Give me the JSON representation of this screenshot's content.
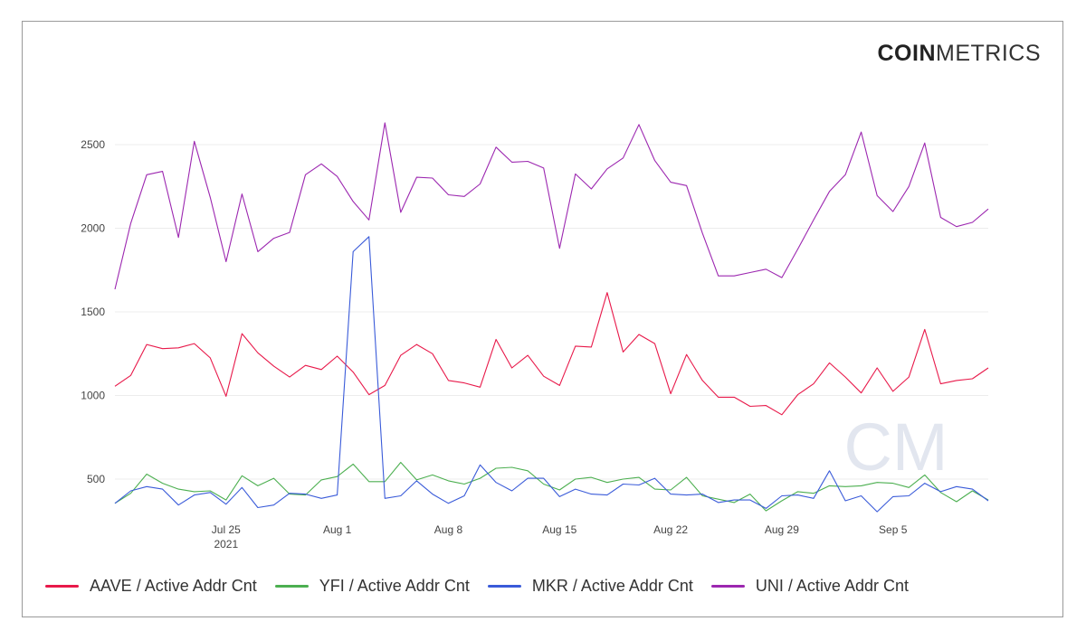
{
  "brand": {
    "logo_bold": "COIN",
    "logo_light": "METRICS",
    "watermark": "CM"
  },
  "chart_data": {
    "type": "line",
    "ylim": [
      0,
      2700
    ],
    "yticks": [
      500,
      1000,
      1500,
      2000,
      2500
    ],
    "x_tick_labels": [
      {
        "index": 7,
        "label": "Jul 25",
        "sublabel": "2021"
      },
      {
        "index": 14,
        "label": "Aug 1",
        "sublabel": ""
      },
      {
        "index": 21,
        "label": "Aug 8",
        "sublabel": ""
      },
      {
        "index": 28,
        "label": "Aug 15",
        "sublabel": ""
      },
      {
        "index": 35,
        "label": "Aug 22",
        "sublabel": ""
      },
      {
        "index": 42,
        "label": "Aug 29",
        "sublabel": ""
      },
      {
        "index": 49,
        "label": "Sep 5",
        "sublabel": ""
      }
    ],
    "num_points": 56,
    "series": [
      {
        "name": "AAVE / Active Addr Cnt",
        "color": "#e8194a",
        "values": [
          1055,
          1120,
          1305,
          1280,
          1285,
          1310,
          1225,
          995,
          1370,
          1255,
          1175,
          1110,
          1180,
          1155,
          1235,
          1140,
          1005,
          1060,
          1240,
          1305,
          1250,
          1090,
          1075,
          1050,
          1335,
          1165,
          1240,
          1115,
          1060,
          1295,
          1290,
          1615,
          1260,
          1365,
          1310,
          1010,
          1245,
          1090,
          990,
          990,
          935,
          940,
          885,
          1005,
          1070,
          1195,
          1110,
          1015,
          1165,
          1025,
          1110,
          1395,
          1070,
          1090,
          1100,
          1165
        ]
      },
      {
        "name": "YFI / Active Addr Cnt",
        "color": "#4caf50",
        "values": [
          355,
          415,
          530,
          475,
          440,
          425,
          430,
          375,
          520,
          460,
          505,
          410,
          405,
          495,
          515,
          590,
          485,
          485,
          600,
          495,
          525,
          490,
          470,
          505,
          565,
          570,
          550,
          470,
          435,
          500,
          510,
          480,
          500,
          510,
          440,
          435,
          510,
          400,
          380,
          360,
          410,
          310,
          370,
          425,
          415,
          460,
          455,
          460,
          480,
          475,
          450,
          525,
          420,
          365,
          430,
          375
        ]
      },
      {
        "name": "MKR / Active Addr Cnt",
        "color": "#3a5bd9",
        "values": [
          355,
          430,
          455,
          440,
          345,
          405,
          420,
          350,
          450,
          330,
          345,
          415,
          410,
          385,
          405,
          1860,
          1950,
          385,
          400,
          490,
          410,
          355,
          400,
          585,
          480,
          430,
          505,
          505,
          395,
          440,
          410,
          405,
          470,
          465,
          505,
          410,
          405,
          410,
          360,
          375,
          375,
          325,
          400,
          405,
          385,
          550,
          370,
          400,
          305,
          395,
          400,
          475,
          425,
          455,
          440,
          370
        ]
      },
      {
        "name": "UNI / Active Addr Cnt",
        "color": "#9c27b0",
        "values": [
          1635,
          2030,
          2320,
          2340,
          1945,
          2520,
          2185,
          1800,
          2205,
          1860,
          1940,
          1975,
          2320,
          2385,
          2310,
          2160,
          2050,
          2630,
          2095,
          2305,
          2300,
          2200,
          2190,
          2265,
          2485,
          2395,
          2400,
          2360,
          1880,
          2325,
          2235,
          2355,
          2420,
          2620,
          2405,
          2275,
          2255,
          1970,
          1715,
          1715,
          1735,
          1755,
          1705,
          1875,
          2050,
          2220,
          2320,
          2575,
          2195,
          2100,
          2250,
          2510,
          2065,
          2010,
          2035,
          2115
        ]
      }
    ]
  }
}
